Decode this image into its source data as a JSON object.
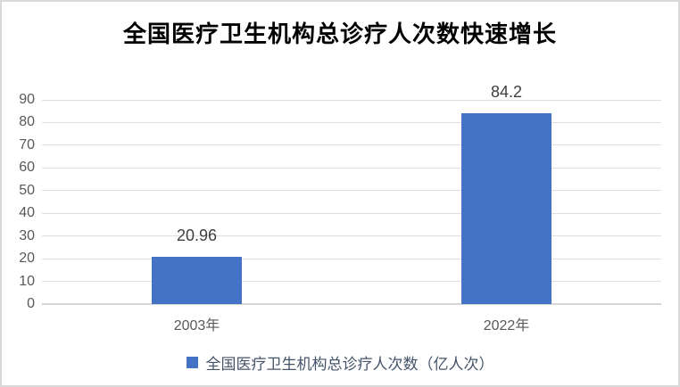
{
  "chart_data": {
    "type": "bar",
    "title": "全国医疗卫生机构总诊疗人次数快速增长",
    "categories": [
      "2003年",
      "2022年"
    ],
    "values": [
      20.96,
      84.2
    ],
    "value_labels": [
      "20.96",
      "84.2"
    ],
    "xlabel": "",
    "ylabel": "",
    "ylim": [
      0,
      90
    ],
    "yticks": [
      0,
      10,
      20,
      30,
      40,
      50,
      60,
      70,
      80,
      90
    ],
    "grid": true,
    "legend": {
      "label": "全国医疗卫生机构总诊疗人次数（亿人次）",
      "position": "bottom"
    },
    "colors": {
      "bar_fill": "#4472c4",
      "gridline": "#dedede",
      "axis_line": "#d5d5d5",
      "tick_label": "#595959",
      "value_label": "#3f3f3f",
      "legend_text": "#44546a",
      "title_text": "#000000",
      "frame_border": "#d9d9d9"
    }
  }
}
